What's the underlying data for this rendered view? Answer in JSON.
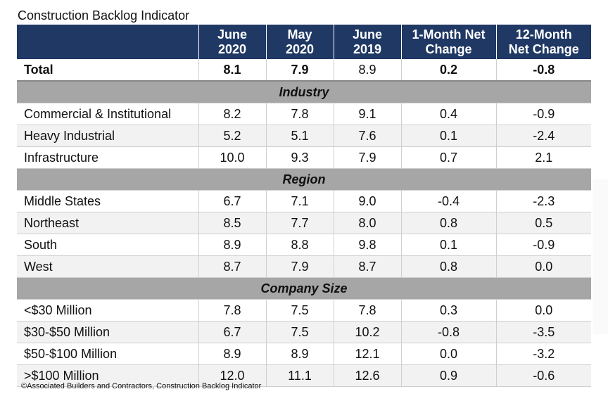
{
  "title": "Construction Backlog Indicator",
  "footer": "©Associated Builders and Contractors, Construction Backlog Indicator",
  "colors": {
    "header_bg": "#1f3864",
    "section_bg": "#a6a6a6",
    "alt_row_bg": "#f2f2f2"
  },
  "chart_data": {
    "type": "table",
    "title": "Construction Backlog Indicator",
    "columns": [
      {
        "line1": "",
        "line2": ""
      },
      {
        "line1": "June",
        "line2": "2020"
      },
      {
        "line1": "May",
        "line2": "2020"
      },
      {
        "line1": "June",
        "line2": "2019"
      },
      {
        "line1": "1-Month Net",
        "line2": "Change"
      },
      {
        "line1": "12-Month",
        "line2": "Net Change"
      }
    ],
    "total": {
      "label": "Total",
      "values": [
        "8.1",
        "7.9",
        "8.9",
        "0.2",
        "-0.8"
      ]
    },
    "sections": [
      {
        "name": "Industry",
        "rows": [
          {
            "label": "Commercial & Institutional",
            "values": [
              "8.2",
              "7.8",
              "9.1",
              "0.4",
              "-0.9"
            ]
          },
          {
            "label": "Heavy Industrial",
            "values": [
              "5.2",
              "5.1",
              "7.6",
              "0.1",
              "-2.4"
            ]
          },
          {
            "label": "Infrastructure",
            "values": [
              "10.0",
              "9.3",
              "7.9",
              "0.7",
              "2.1"
            ]
          }
        ]
      },
      {
        "name": "Region",
        "rows": [
          {
            "label": "Middle States",
            "values": [
              "6.7",
              "7.1",
              "9.0",
              "-0.4",
              "-2.3"
            ]
          },
          {
            "label": "Northeast",
            "values": [
              "8.5",
              "7.7",
              "8.0",
              "0.8",
              "0.5"
            ]
          },
          {
            "label": "South",
            "values": [
              "8.9",
              "8.8",
              "9.8",
              "0.1",
              "-0.9"
            ]
          },
          {
            "label": "West",
            "values": [
              "8.7",
              "7.9",
              "8.7",
              "0.8",
              "0.0"
            ]
          }
        ]
      },
      {
        "name": "Company Size",
        "rows": [
          {
            "label": "<$30 Million",
            "values": [
              "7.8",
              "7.5",
              "7.8",
              "0.3",
              "0.0"
            ]
          },
          {
            "label": "$30-$50 Million",
            "values": [
              "6.7",
              "7.5",
              "10.2",
              "-0.8",
              "-3.5"
            ]
          },
          {
            "label": "$50-$100 Million",
            "values": [
              "8.9",
              "8.9",
              "12.1",
              "0.0",
              "-3.2"
            ]
          },
          {
            "label": ">$100 Million",
            "values": [
              "12.0",
              "11.1",
              "12.6",
              "0.9",
              "-0.6"
            ]
          }
        ]
      }
    ]
  }
}
